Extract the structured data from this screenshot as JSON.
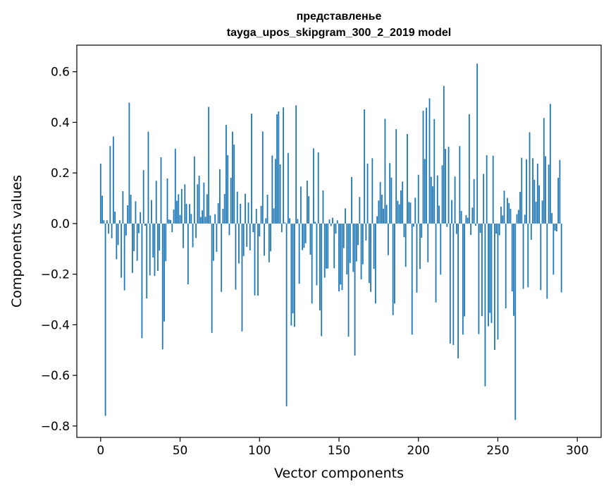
{
  "chart_data": {
    "type": "bar",
    "title": "представленье",
    "subtitle": "tayga_upos_skipgram_300_2_2019 model",
    "xlabel": "Vector components",
    "ylabel": "Components values",
    "xlim": [
      -15,
      315
    ],
    "ylim": [
      -0.845,
      0.705
    ],
    "xticks": [
      0,
      50,
      100,
      150,
      200,
      250,
      300
    ],
    "yticks": [
      -0.8,
      -0.6,
      -0.4,
      -0.2,
      0.0,
      0.2,
      0.4,
      0.6
    ],
    "ytick_labels": [
      "−0.8",
      "−0.6",
      "−0.4",
      "−0.2",
      "0.0",
      "0.2",
      "0.4",
      "0.6"
    ],
    "bar_color": "#1f77b4",
    "values": [
      0.237,
      0.11,
      0.013,
      -0.76,
      0.013,
      -0.04,
      0.306,
      -0.058,
      0.344,
      0.047,
      -0.141,
      -0.085,
      0.013,
      -0.214,
      0.128,
      -0.264,
      -0.047,
      0.072,
      0.478,
      0.114,
      -0.195,
      -0.109,
      0.088,
      -0.147,
      -0.038,
      0.045,
      -0.453,
      0.211,
      -0.009,
      -0.296,
      0.363,
      -0.205,
      0.093,
      -0.134,
      -0.207,
      0.169,
      -0.187,
      -0.107,
      0.262,
      -0.497,
      -0.387,
      -0.149,
      0.178,
      0.016,
      0.014,
      -0.034,
      0.055,
      0.296,
      0.09,
      0.116,
      0.034,
      0.137,
      -0.097,
      0.155,
      0.078,
      -0.24,
      0.077,
      0.038,
      -0.094,
      0.265,
      -0.057,
      0.155,
      0.189,
      0.026,
      0.052,
      0.162,
      0.027,
      0.116,
      0.461,
      0.032,
      -0.432,
      -0.147,
      0.037,
      -0.112,
      0.081,
      0.215,
      -0.27,
      0.058,
      0.117,
      0.39,
      0.27,
      -0.046,
      0.181,
      0.363,
      0.312,
      -0.261,
      0.126,
      -0.158,
      0.078,
      -0.426,
      -0.129,
      0.118,
      -0.092,
      0.083,
      -0.106,
      0.434,
      -0.034,
      -0.284,
      0.058,
      -0.285,
      -0.051,
      0.07,
      0.364,
      -0.127,
      0.021,
      0.114,
      -0.153,
      -0.11,
      0.269,
      0.06,
      0.255,
      0.432,
      0.443,
      0.234,
      -0.034,
      0.459,
      0.004,
      -0.722,
      0.279,
      0.021,
      -0.403,
      -0.355,
      -0.408,
      0.467,
      0.018,
      -0.238,
      0.146,
      -0.105,
      -0.096,
      -0.078,
      0.17,
      0.108,
      -0.123,
      -0.316,
      0.297,
      0.007,
      -0.244,
      0.281,
      -0.343,
      -0.445,
      0.131,
      -0.214,
      -0.178,
      -0.178,
      0.016,
      -0.01,
      0.023,
      -0.177,
      -0.04,
      0.013,
      -0.268,
      -0.241,
      -0.263,
      -0.097,
      0.06,
      -0.201,
      -0.447,
      -0.156,
      0.184,
      -0.191,
      -0.522,
      -0.15,
      -0.085,
      0.105,
      -0.221,
      -0.161,
      0.451,
      -0.067,
      0.237,
      -0.235,
      -0.27,
      0.258,
      -0.179,
      -0.316,
      0.029,
      0.091,
      0.164,
      0.114,
      0.059,
      0.414,
      0.074,
      -0.125,
      0.239,
      0.182,
      -0.362,
      -0.316,
      0.373,
      0.09,
      0.076,
      0.131,
      0.166,
      -0.054,
      -0.171,
      0.354,
      0.085,
      0.083,
      -0.439,
      -0.012,
      0.102,
      -0.273,
      0.193,
      -0.18,
      -0.056,
      0.446,
      0.255,
      0.458,
      -0.153,
      0.495,
      0.185,
      0.147,
      0.413,
      -0.312,
      0.19,
      0.071,
      -0.202,
      0.23,
      0.544,
      0.295,
      -0.013,
      0.304,
      -0.474,
      0.093,
      -0.48,
      0.186,
      -0.041,
      -0.533,
      0.306,
      0.05,
      -0.439,
      -0.367,
      0.033,
      0.023,
      0.432,
      -0.045,
      0.063,
      0.176,
      -0.009,
      0.632,
      -0.437,
      -0.037,
      -0.366,
      0.196,
      -0.643,
      0.27,
      -0.406,
      -0.353,
      -0.393,
      0.268,
      -0.499,
      -0.04,
      -0.458,
      -0.046,
      0.067,
      0.032,
      0.13,
      -0.335,
      0.101,
      0.081,
      0.058,
      -0.268,
      -0.365,
      -0.776,
      0.037,
      0.054,
      0.125,
      0.26,
      -0.258,
      0.035,
      0.254,
      -0.252,
      0.361,
      -0.064,
      0.258,
      0.173,
      0.086,
      0.237,
      0.151,
      -0.263,
      0.091,
      0.417,
      0.266,
      -0.297,
      0.233,
      0.473,
      0.042,
      -0.202,
      -0.028,
      -0.031,
      0.181,
      0.251,
      -0.272
    ]
  }
}
